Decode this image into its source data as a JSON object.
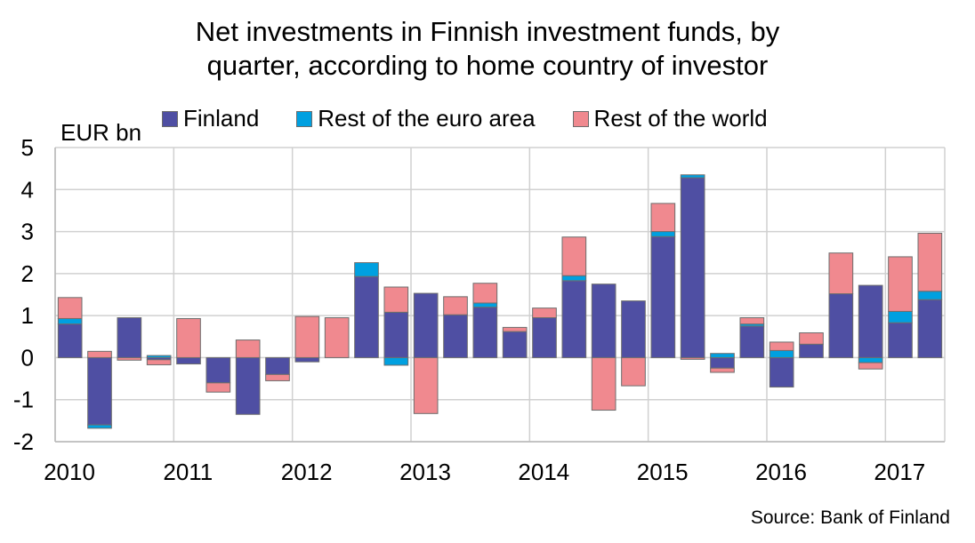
{
  "chart_data": {
    "type": "bar",
    "stacked": true,
    "title_lines": [
      "Net investments in Finnish investment funds, by",
      "quarter, according to home country of investor"
    ],
    "unit_label": "EUR bn",
    "source": "Source: Bank of Finland",
    "ylim": [
      -2,
      5
    ],
    "yticks": [
      "5",
      "4",
      "3",
      "2",
      "1",
      "0",
      "-1",
      "-2"
    ],
    "ytick_values": [
      5,
      4,
      3,
      2,
      1,
      0,
      -1,
      -2
    ],
    "year_labels": [
      "2010",
      "2011",
      "2012",
      "2013",
      "2014",
      "2015",
      "2016",
      "2017"
    ],
    "grid": true,
    "legend_position": "top",
    "categories": [
      "2010Q1",
      "2010Q2",
      "2010Q3",
      "2010Q4",
      "2011Q1",
      "2011Q2",
      "2011Q3",
      "2011Q4",
      "2012Q1",
      "2012Q2",
      "2012Q3",
      "2012Q4",
      "2013Q1",
      "2013Q2",
      "2013Q3",
      "2013Q4",
      "2014Q1",
      "2014Q2",
      "2014Q3",
      "2014Q4",
      "2015Q1",
      "2015Q2",
      "2015Q3",
      "2015Q4",
      "2016Q1",
      "2016Q2",
      "2016Q3",
      "2016Q4",
      "2017Q1",
      "2017Q2"
    ],
    "series": [
      {
        "name": "Finland",
        "color": "#4f4fa3",
        "values": [
          0.8,
          -1.6,
          0.95,
          -0.05,
          -0.15,
          -0.6,
          -1.35,
          -0.4,
          -0.1,
          0.0,
          1.93,
          1.08,
          1.53,
          1.02,
          1.2,
          0.62,
          0.95,
          1.83,
          1.75,
          1.35,
          2.88,
          4.28,
          -0.25,
          0.75,
          -0.7,
          0.32,
          1.52,
          1.72,
          0.83,
          1.38
        ]
      },
      {
        "name": "Rest of the euro area",
        "color": "#00a0e0",
        "values": [
          0.13,
          -0.08,
          0.0,
          0.05,
          0.0,
          0.0,
          0.0,
          0.0,
          0.0,
          0.0,
          0.33,
          -0.18,
          0.0,
          0.0,
          0.1,
          0.0,
          0.0,
          0.12,
          0.0,
          0.0,
          0.12,
          0.07,
          0.1,
          0.05,
          0.17,
          0.0,
          0.0,
          -0.12,
          0.27,
          0.2
        ]
      },
      {
        "name": "Rest of the world",
        "color": "#f0898f",
        "values": [
          0.5,
          0.15,
          -0.06,
          -0.12,
          0.93,
          -0.22,
          0.42,
          -0.15,
          0.98,
          0.95,
          0.0,
          0.6,
          -1.33,
          0.43,
          0.47,
          0.1,
          0.23,
          0.92,
          -1.25,
          -0.67,
          0.67,
          -0.04,
          -0.1,
          0.15,
          0.2,
          0.27,
          0.97,
          -0.15,
          1.3,
          1.38
        ]
      }
    ]
  }
}
